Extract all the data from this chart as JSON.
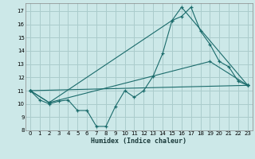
{
  "xlabel": "Humidex (Indice chaleur)",
  "bg_color": "#cce8e8",
  "grid_color": "#aacccc",
  "line_color": "#1a6b6b",
  "xlim": [
    -0.5,
    23.5
  ],
  "ylim": [
    8,
    17.6
  ],
  "yticks": [
    8,
    9,
    10,
    11,
    12,
    13,
    14,
    15,
    16,
    17
  ],
  "xticks": [
    0,
    1,
    2,
    3,
    4,
    5,
    6,
    7,
    8,
    9,
    10,
    11,
    12,
    13,
    14,
    15,
    16,
    17,
    18,
    19,
    20,
    21,
    22,
    23
  ],
  "xtick_labels": [
    "0",
    "1",
    "2",
    "3",
    "4",
    "5",
    "6",
    "7",
    "8",
    "9",
    "10",
    "11",
    "12",
    "13",
    "14",
    "15",
    "16",
    "17",
    "18",
    "19",
    "20",
    "21",
    "22",
    "23"
  ],
  "curve1_x": [
    0,
    1,
    2,
    3,
    4,
    5,
    6,
    7,
    8,
    9,
    10,
    11,
    12,
    13,
    14,
    15,
    16,
    17,
    18,
    19,
    20,
    21,
    22,
    23
  ],
  "curve1_y": [
    11.0,
    10.3,
    10.0,
    10.2,
    10.3,
    9.5,
    9.5,
    8.3,
    8.3,
    9.8,
    11.0,
    10.5,
    11.0,
    12.1,
    13.8,
    16.3,
    16.6,
    17.3,
    15.5,
    14.5,
    13.2,
    12.8,
    11.7,
    11.4
  ],
  "curve2_x": [
    0,
    2,
    15,
    16,
    23
  ],
  "curve2_y": [
    11.0,
    10.1,
    16.3,
    17.3,
    11.4
  ],
  "curve3_x": [
    0,
    2,
    19,
    23
  ],
  "curve3_y": [
    11.0,
    10.1,
    13.2,
    11.4
  ],
  "curve4_x": [
    0,
    23
  ],
  "curve4_y": [
    11.0,
    11.4
  ]
}
